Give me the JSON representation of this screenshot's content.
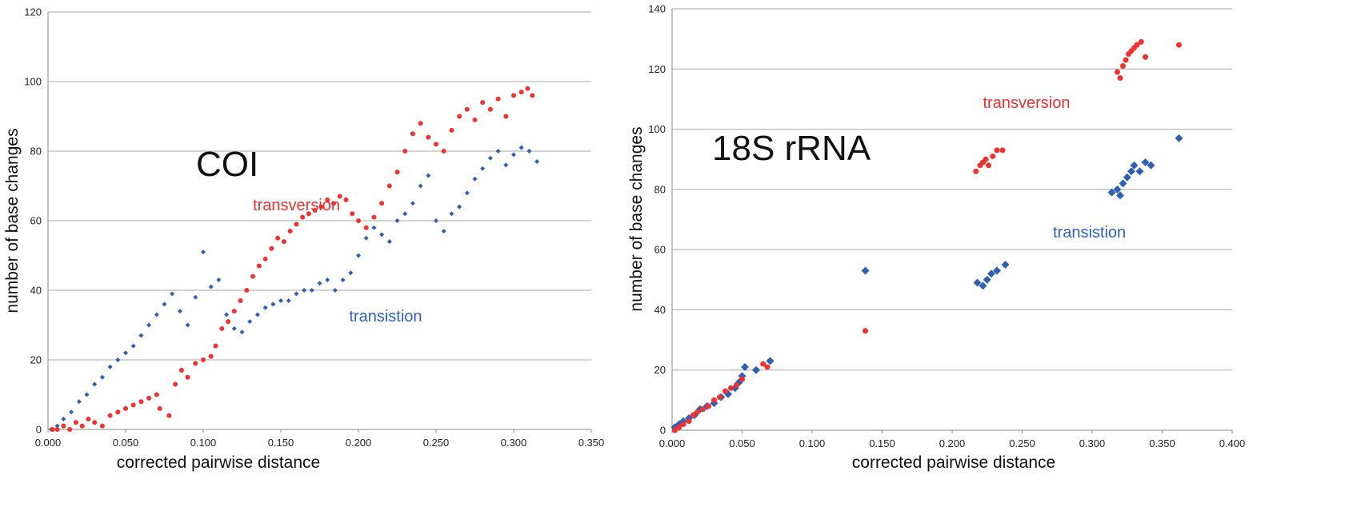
{
  "chart_data": [
    {
      "type": "scatter",
      "title": "COI",
      "xlabel": "corrected pairwise distance",
      "ylabel": "number of base changes",
      "xlim": [
        0,
        0.35
      ],
      "ylim": [
        0,
        120
      ],
      "xticks": [
        "0.000",
        "0.050",
        "0.100",
        "0.150",
        "0.200",
        "0.250",
        "0.300",
        "0.350"
      ],
      "yticks": [
        "0",
        "20",
        "40",
        "60",
        "80",
        "100",
        "120"
      ],
      "grid": true,
      "annotations": [
        {
          "text": "transversion",
          "x": 0.132,
          "y": 63,
          "color": "#e8302f"
        },
        {
          "text": "transistion",
          "x": 0.194,
          "y": 31,
          "color": "#2f63b7"
        }
      ],
      "series": [
        {
          "label": "transversion",
          "color": "#ee3232",
          "marker": "circle",
          "points": [
            [
              0.003,
              0
            ],
            [
              0.006,
              0
            ],
            [
              0.01,
              1
            ],
            [
              0.014,
              0
            ],
            [
              0.018,
              2
            ],
            [
              0.022,
              1
            ],
            [
              0.026,
              3
            ],
            [
              0.03,
              2
            ],
            [
              0.035,
              1
            ],
            [
              0.04,
              4
            ],
            [
              0.045,
              5
            ],
            [
              0.05,
              6
            ],
            [
              0.055,
              7
            ],
            [
              0.06,
              8
            ],
            [
              0.065,
              9
            ],
            [
              0.07,
              10
            ],
            [
              0.072,
              6
            ],
            [
              0.078,
              4
            ],
            [
              0.082,
              13
            ],
            [
              0.086,
              17
            ],
            [
              0.09,
              15
            ],
            [
              0.095,
              19
            ],
            [
              0.1,
              20
            ],
            [
              0.105,
              21
            ],
            [
              0.108,
              24
            ],
            [
              0.112,
              29
            ],
            [
              0.116,
              31
            ],
            [
              0.12,
              34
            ],
            [
              0.124,
              37
            ],
            [
              0.128,
              40
            ],
            [
              0.132,
              44
            ],
            [
              0.136,
              47
            ],
            [
              0.14,
              49
            ],
            [
              0.144,
              52
            ],
            [
              0.148,
              55
            ],
            [
              0.152,
              54
            ],
            [
              0.156,
              57
            ],
            [
              0.16,
              59
            ],
            [
              0.164,
              61
            ],
            [
              0.168,
              62
            ],
            [
              0.172,
              63
            ],
            [
              0.176,
              64
            ],
            [
              0.18,
              66
            ],
            [
              0.184,
              65
            ],
            [
              0.188,
              67
            ],
            [
              0.192,
              66
            ],
            [
              0.196,
              62
            ],
            [
              0.2,
              60
            ],
            [
              0.205,
              58
            ],
            [
              0.21,
              61
            ],
            [
              0.215,
              65
            ],
            [
              0.22,
              70
            ],
            [
              0.225,
              74
            ],
            [
              0.23,
              80
            ],
            [
              0.235,
              85
            ],
            [
              0.24,
              88
            ],
            [
              0.245,
              84
            ],
            [
              0.25,
              82
            ],
            [
              0.255,
              80
            ],
            [
              0.26,
              86
            ],
            [
              0.265,
              90
            ],
            [
              0.27,
              92
            ],
            [
              0.275,
              89
            ],
            [
              0.28,
              94
            ],
            [
              0.285,
              92
            ],
            [
              0.29,
              95
            ],
            [
              0.295,
              90
            ],
            [
              0.3,
              96
            ],
            [
              0.305,
              97
            ],
            [
              0.309,
              98
            ],
            [
              0.312,
              96
            ]
          ]
        },
        {
          "label": "transistion",
          "color": "#2f5fb3",
          "marker": "diamond",
          "points": [
            [
              0.002,
              0
            ],
            [
              0.006,
              1
            ],
            [
              0.01,
              3
            ],
            [
              0.015,
              5
            ],
            [
              0.02,
              8
            ],
            [
              0.025,
              10
            ],
            [
              0.03,
              13
            ],
            [
              0.035,
              15
            ],
            [
              0.04,
              18
            ],
            [
              0.045,
              20
            ],
            [
              0.05,
              22
            ],
            [
              0.055,
              24
            ],
            [
              0.06,
              27
            ],
            [
              0.065,
              30
            ],
            [
              0.07,
              33
            ],
            [
              0.075,
              36
            ],
            [
              0.08,
              39
            ],
            [
              0.085,
              34
            ],
            [
              0.09,
              30
            ],
            [
              0.095,
              38
            ],
            [
              0.1,
              51
            ],
            [
              0.105,
              41
            ],
            [
              0.11,
              43
            ],
            [
              0.115,
              33
            ],
            [
              0.12,
              29
            ],
            [
              0.125,
              28
            ],
            [
              0.13,
              31
            ],
            [
              0.135,
              33
            ],
            [
              0.14,
              35
            ],
            [
              0.145,
              36
            ],
            [
              0.15,
              37
            ],
            [
              0.155,
              37
            ],
            [
              0.16,
              39
            ],
            [
              0.165,
              40
            ],
            [
              0.17,
              40
            ],
            [
              0.175,
              42
            ],
            [
              0.18,
              43
            ],
            [
              0.185,
              40
            ],
            [
              0.19,
              43
            ],
            [
              0.195,
              45
            ],
            [
              0.2,
              50
            ],
            [
              0.205,
              55
            ],
            [
              0.21,
              58
            ],
            [
              0.215,
              56
            ],
            [
              0.22,
              54
            ],
            [
              0.225,
              60
            ],
            [
              0.23,
              62
            ],
            [
              0.235,
              65
            ],
            [
              0.24,
              70
            ],
            [
              0.245,
              73
            ],
            [
              0.25,
              60
            ],
            [
              0.255,
              57
            ],
            [
              0.26,
              62
            ],
            [
              0.265,
              64
            ],
            [
              0.27,
              68
            ],
            [
              0.275,
              72
            ],
            [
              0.28,
              75
            ],
            [
              0.285,
              78
            ],
            [
              0.29,
              80
            ],
            [
              0.295,
              76
            ],
            [
              0.3,
              79
            ],
            [
              0.305,
              81
            ],
            [
              0.31,
              80
            ],
            [
              0.315,
              77
            ]
          ]
        }
      ]
    },
    {
      "type": "scatter",
      "title": "18S rRNA",
      "xlabel": "corrected pairwise distance",
      "ylabel": "number of base changes",
      "xlim": [
        0,
        0.4
      ],
      "ylim": [
        0,
        140
      ],
      "xticks": [
        "0.000",
        "0.050",
        "0.100",
        "0.150",
        "0.200",
        "0.250",
        "0.300",
        "0.350",
        "0.400"
      ],
      "yticks": [
        "0",
        "20",
        "40",
        "60",
        "80",
        "100",
        "120",
        "140"
      ],
      "grid": true,
      "annotations": [
        {
          "text": "transversion",
          "x": 0.222,
          "y": 107,
          "color": "#e8302f"
        },
        {
          "text": "transistion",
          "x": 0.272,
          "y": 64,
          "color": "#2f63b7"
        }
      ],
      "series": [
        {
          "label": "transversion",
          "color": "#ee3232",
          "marker": "circle",
          "points": [
            [
              0.002,
              0
            ],
            [
              0.005,
              1
            ],
            [
              0.008,
              2
            ],
            [
              0.012,
              3
            ],
            [
              0.015,
              5
            ],
            [
              0.018,
              6
            ],
            [
              0.022,
              7
            ],
            [
              0.026,
              8
            ],
            [
              0.03,
              10
            ],
            [
              0.034,
              11
            ],
            [
              0.038,
              13
            ],
            [
              0.042,
              14
            ],
            [
              0.046,
              15
            ],
            [
              0.05,
              17
            ],
            [
              0.065,
              22
            ],
            [
              0.068,
              21
            ],
            [
              0.138,
              33
            ],
            [
              0.217,
              86
            ],
            [
              0.22,
              88
            ],
            [
              0.222,
              89
            ],
            [
              0.224,
              90
            ],
            [
              0.226,
              88
            ],
            [
              0.229,
              91
            ],
            [
              0.232,
              93
            ],
            [
              0.236,
              93
            ],
            [
              0.318,
              119
            ],
            [
              0.32,
              117
            ],
            [
              0.322,
              121
            ],
            [
              0.324,
              123
            ],
            [
              0.326,
              125
            ],
            [
              0.328,
              126
            ],
            [
              0.33,
              127
            ],
            [
              0.332,
              128
            ],
            [
              0.335,
              129
            ],
            [
              0.338,
              124
            ],
            [
              0.362,
              128
            ]
          ]
        },
        {
          "label": "transistion",
          "color": "#2f5fb3",
          "marker": "diamond",
          "points": [
            [
              0.002,
              1
            ],
            [
              0.005,
              2
            ],
            [
              0.008,
              3
            ],
            [
              0.012,
              4
            ],
            [
              0.016,
              5
            ],
            [
              0.02,
              7
            ],
            [
              0.025,
              8
            ],
            [
              0.03,
              9
            ],
            [
              0.035,
              11
            ],
            [
              0.04,
              12
            ],
            [
              0.045,
              14
            ],
            [
              0.048,
              16
            ],
            [
              0.05,
              18
            ],
            [
              0.052,
              21
            ],
            [
              0.06,
              20
            ],
            [
              0.07,
              23
            ],
            [
              0.138,
              53
            ],
            [
              0.218,
              49
            ],
            [
              0.222,
              48
            ],
            [
              0.225,
              50
            ],
            [
              0.228,
              52
            ],
            [
              0.232,
              53
            ],
            [
              0.238,
              55
            ],
            [
              0.314,
              79
            ],
            [
              0.318,
              80
            ],
            [
              0.32,
              78
            ],
            [
              0.322,
              82
            ],
            [
              0.325,
              84
            ],
            [
              0.328,
              86
            ],
            [
              0.33,
              88
            ],
            [
              0.334,
              86
            ],
            [
              0.338,
              89
            ],
            [
              0.342,
              88
            ],
            [
              0.362,
              97
            ]
          ]
        }
      ]
    }
  ]
}
